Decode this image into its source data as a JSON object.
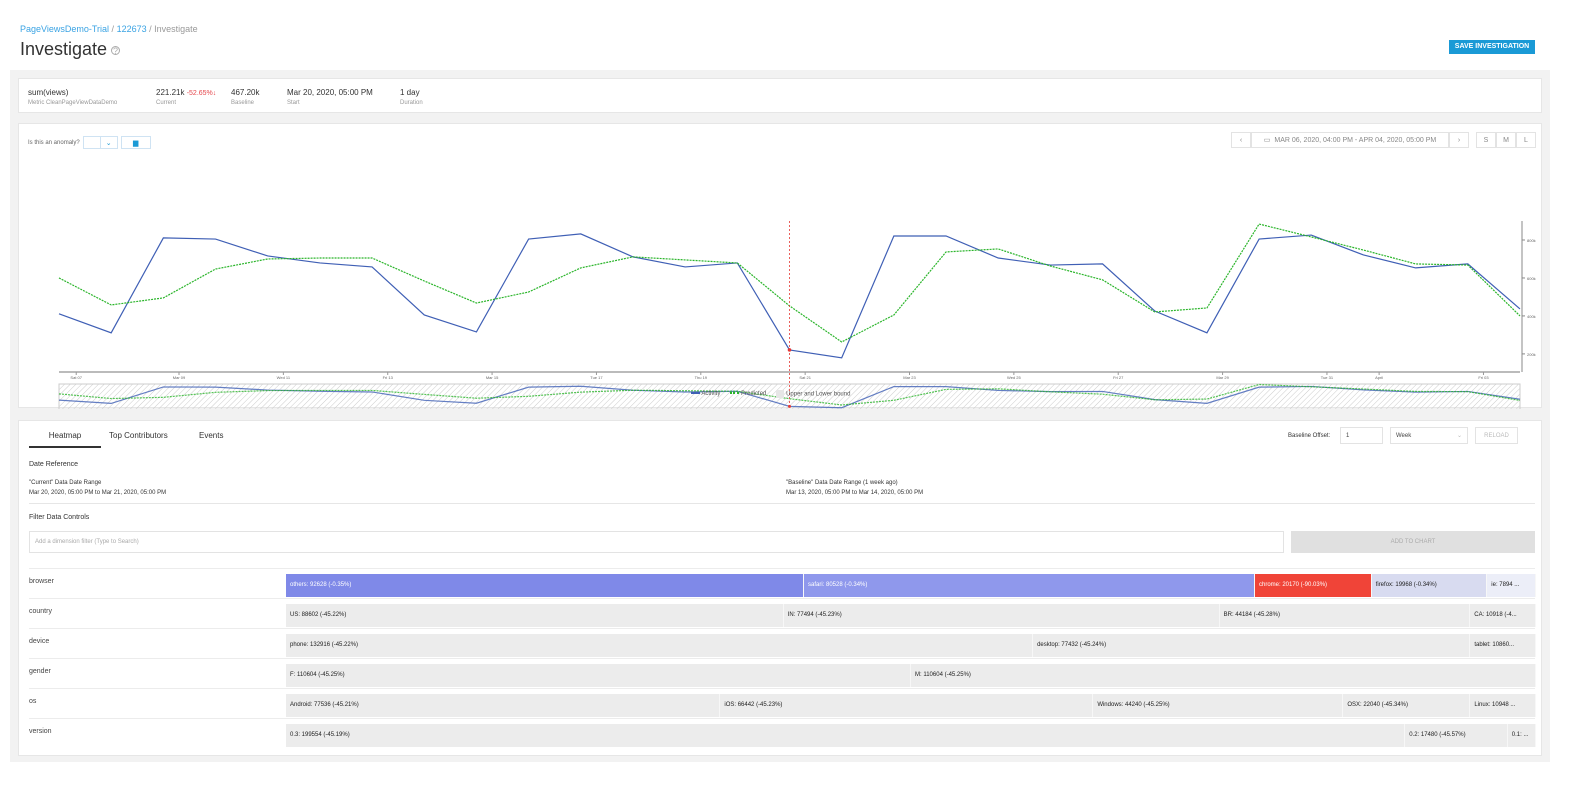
{
  "breadcrumb": {
    "items": [
      "PageViewsDemo-Trial",
      "122673"
    ],
    "current": "Investigate"
  },
  "page_title": "Investigate",
  "save_button": "SAVE INVESTIGATION",
  "metric": {
    "name": "sum(views)",
    "subtitle": "Metric CleanPageViewDataDemo",
    "current": "221.21k",
    "current_label": "Current",
    "change": "-52.65%",
    "baseline": "467.20k",
    "baseline_label": "Baseline",
    "start": "Mar 20, 2020, 05:00 PM",
    "start_label": "Start",
    "duration": "1 day",
    "duration_label": "Duration"
  },
  "anomaly": {
    "label": "Is this an anomaly?"
  },
  "date_range": {
    "text": "MAR 06, 2020, 04:00 PM - APR 04, 2020, 05:00 PM",
    "prev": "‹",
    "next": "›",
    "sizes": [
      "S",
      "M",
      "L"
    ]
  },
  "colors": {
    "activity": "#3f5fb5",
    "predicted": "#2bb52b",
    "anomaly": "#e53935",
    "accent": "#1a9ad6"
  },
  "chart_data": {
    "type": "line",
    "x": [
      0,
      1,
      2,
      3,
      4,
      5,
      6,
      7,
      8,
      9,
      10,
      11,
      12,
      13,
      14,
      15,
      16,
      17,
      18,
      19,
      20,
      21,
      22,
      23,
      24,
      25,
      26,
      27,
      28
    ],
    "series": [
      {
        "name": "Activity",
        "values": [
          411,
          311,
          811,
          805,
          716,
          679,
          658,
          405,
          316,
          805,
          832,
          711,
          658,
          679,
          221,
          179,
          821,
          821,
          705,
          668,
          674,
          426,
          311,
          805,
          826,
          721,
          653,
          674,
          437
        ]
      },
      {
        "name": "Predicted",
        "values": [
          600,
          458,
          495,
          647,
          700,
          705,
          705,
          584,
          468,
          526,
          653,
          711,
          695,
          679,
          453,
          263,
          405,
          737,
          753,
          663,
          590,
          421,
          442,
          884,
          816,
          747,
          674,
          668,
          400
        ]
      }
    ],
    "bound_label": "Upper and Lower bound",
    "anomaly_index": 14,
    "ylim": [
      110,
      900
    ],
    "yticks": [
      {
        "v": 800,
        "label": "800k"
      },
      {
        "v": 600,
        "label": "600k"
      },
      {
        "v": 400,
        "label": "400k"
      },
      {
        "v": 200,
        "label": "200k"
      }
    ],
    "xticks": [
      {
        "v": 0.33,
        "label": "Sat 07"
      },
      {
        "v": 2.3,
        "label": "Mar 09"
      },
      {
        "v": 4.3,
        "label": "Wed 11"
      },
      {
        "v": 6.3,
        "label": "Fri 13"
      },
      {
        "v": 8.3,
        "label": "Mar 15"
      },
      {
        "v": 10.3,
        "label": "Tue 17"
      },
      {
        "v": 12.3,
        "label": "Thu 19"
      },
      {
        "v": 14.3,
        "label": "Sat 21"
      },
      {
        "v": 16.3,
        "label": "Mar 23"
      },
      {
        "v": 18.3,
        "label": "Wed 25"
      },
      {
        "v": 20.3,
        "label": "Fri 27"
      },
      {
        "v": 22.3,
        "label": "Mar 29"
      },
      {
        "v": 24.3,
        "label": "Tue 31"
      },
      {
        "v": 25.3,
        "label": "April"
      },
      {
        "v": 27.3,
        "label": "Fri 03"
      }
    ],
    "legend": "bottom-center"
  },
  "tabs": [
    "Heatmap",
    "Top Contributors",
    "Events"
  ],
  "baseline_offset": {
    "label": "Baseline Offset:",
    "value": "1",
    "unit": "Week",
    "reload": "RELOAD"
  },
  "date_reference": {
    "title": "Date Reference",
    "current_title": "\"Current\" Data Date Range",
    "current_range": "Mar 20, 2020, 05:00 PM to Mar 21, 2020, 05:00 PM",
    "baseline_title": "\"Baseline\" Data Date Range (1 week ago)",
    "baseline_range": "Mar 13, 2020, 05:00 PM to Mar 14, 2020, 05:00 PM"
  },
  "filter": {
    "title": "Filter Data Controls",
    "placeholder": "Add a dimension filter (Type to Search)",
    "add_button": "ADD TO CHART"
  },
  "heatmap": [
    {
      "dimension": "browser",
      "cells": [
        {
          "label": "others: 92628 (-0.35%)",
          "value": 92628,
          "color": "#7f89e8",
          "text": "#fff"
        },
        {
          "label": "safari: 80528 (-0.34%)",
          "value": 80528,
          "color": "#8f98ec",
          "text": "#fff"
        },
        {
          "label": "chrome: 20170 (-90.03%)",
          "value": 20170,
          "color": "#f04438",
          "text": "#fff"
        },
        {
          "label": "firefox: 19968 (-0.34%)",
          "value": 19968,
          "color": "#d8dbf0"
        },
        {
          "label": "ie: 7894 ...",
          "value": 7894,
          "color": "#eceef8"
        }
      ]
    },
    {
      "dimension": "country",
      "cells": [
        {
          "label": "US: 88602 (-45.22%)",
          "value": 88602
        },
        {
          "label": "IN: 77494 (-45.23%)",
          "value": 77494
        },
        {
          "label": "BR: 44184 (-45.28%)",
          "value": 44184
        },
        {
          "label": "CA: 10918 (-4...",
          "value": 10918
        }
      ]
    },
    {
      "dimension": "device",
      "cells": [
        {
          "label": "phone: 132916 (-45.22%)",
          "value": 132916
        },
        {
          "label": "desktop: 77432 (-45.24%)",
          "value": 77432
        },
        {
          "label": "tablet: 10860...",
          "value": 10860
        }
      ]
    },
    {
      "dimension": "gender",
      "cells": [
        {
          "label": "F: 110604 (-45.25%)",
          "value": 110604
        },
        {
          "label": "M: 110604 (-45.25%)",
          "value": 110604
        }
      ]
    },
    {
      "dimension": "os",
      "cells": [
        {
          "label": "Android: 77536 (-45.21%)",
          "value": 77536
        },
        {
          "label": "iOS: 66442 (-45.23%)",
          "value": 66442
        },
        {
          "label": "Windows: 44240 (-45.25%)",
          "value": 44240
        },
        {
          "label": "OSX: 22040 (-45.34%)",
          "value": 22040
        },
        {
          "label": "Linux: 10948 ...",
          "value": 10948
        }
      ]
    },
    {
      "dimension": "version",
      "cells": [
        {
          "label": "0.3: 199554 (-45.19%)",
          "value": 199554
        },
        {
          "label": "0.2: 17480 (-45.57%)",
          "value": 17480
        },
        {
          "label": "0.1: ...",
          "value": 4154
        }
      ]
    }
  ]
}
